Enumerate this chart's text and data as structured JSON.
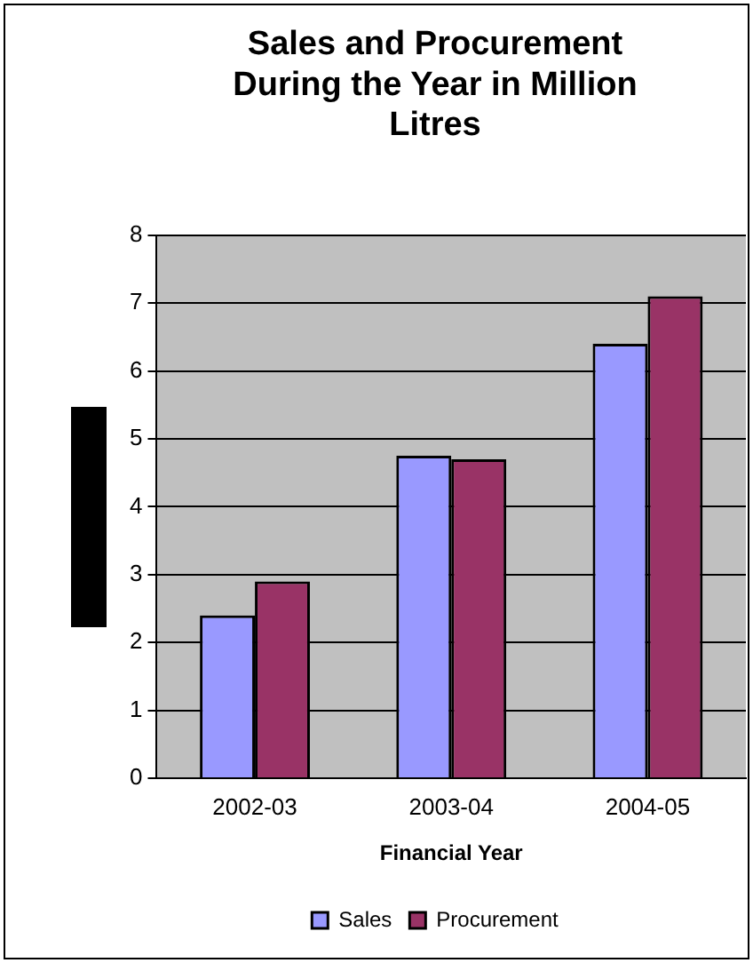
{
  "chart_data": {
    "type": "bar",
    "title": [
      "Sales and Procurement",
      "During the Year in Million",
      "Litres"
    ],
    "xlabel": "Financial Year",
    "categories": [
      "2002-03",
      "2003-04",
      "2004-05"
    ],
    "series": [
      {
        "name": "Sales",
        "color": "#9999ff",
        "values": [
          2.4,
          4.75,
          6.4
        ]
      },
      {
        "name": "Procurement",
        "color": "#993366",
        "values": [
          2.9,
          4.7,
          7.1
        ]
      }
    ],
    "ylim": [
      0,
      8
    ],
    "yticks": [
      0,
      1,
      2,
      3,
      4,
      5,
      6,
      7,
      8
    ],
    "grid": "y",
    "legend": "bottom"
  }
}
